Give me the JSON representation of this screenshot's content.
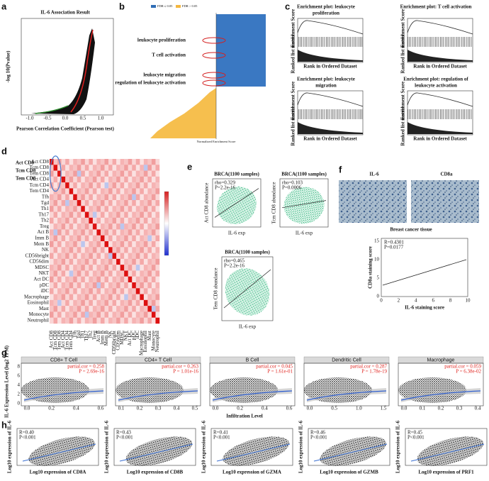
{
  "panel_labels": [
    "a",
    "b",
    "c",
    "d",
    "e",
    "f",
    "g",
    "h"
  ],
  "a": {
    "title": "IL-6 Association Result",
    "ylabel": "-log 10(Pvalue)",
    "xlabel": "Pearson Correlation Coefficient (Pearson test)",
    "xticks": [
      "-1.0",
      "-0.5",
      "0.0",
      "0.5",
      "1.0"
    ]
  },
  "b": {
    "legend": [
      "FDR ≤ 0.05",
      "FDR > 0.05"
    ],
    "highlights": [
      "leukocyte proliferation",
      "T cell activation",
      "leukocyte migration",
      "regulation of leukocyte activation"
    ],
    "xlabel": "Normalized Enrichment Score"
  },
  "c": {
    "ylabel_top": "Enrichment Score",
    "ylabel_bottom": "Ranked list metric",
    "xlabel": "Rank in Ordered Dataset",
    "plots": [
      {
        "title": [
          "Enrichment plot: leukocyte",
          "proliferation"
        ]
      },
      {
        "title": [
          "Enrichment plot: T cell activation"
        ]
      },
      {
        "title": [
          "Enrichment plot: leukocyte",
          "migration"
        ]
      },
      {
        "title": [
          "Enrichment plot: regulation of",
          "leukocyte activation"
        ]
      }
    ]
  },
  "d": {
    "highlights": [
      "Act CD8",
      "Tcm CD8",
      "Tem CD8"
    ],
    "rows": [
      "Act CD8",
      "Tcm CD8",
      "Tem CD8",
      "Act CD4",
      "Tcm CD4",
      "Tem CD4",
      "Tfh",
      "Tgd",
      "Th1",
      "Th17",
      "Th2",
      "Treg",
      "Act B",
      "Imm B",
      "Mem B",
      "NK",
      "CD56bright",
      "CD56dim",
      "MDSC",
      "NKT",
      "Act DC",
      "pDC",
      "iDC",
      "Macrophage",
      "Eosinophil",
      "Mast",
      "Monocyte",
      "Neutrophil"
    ]
  },
  "e": {
    "plots": [
      {
        "title": "BRCA(1100 samples)",
        "stats": [
          "rho=0.329",
          "P=2.2e-16"
        ],
        "ylabel": "Act CD8 abundance",
        "xlabel": "IL-6 exp"
      },
      {
        "title": "BRCA(1100 samples)",
        "stats": [
          "rho=0.103",
          "P=0.0006"
        ],
        "ylabel": "Tcm CD8 abundance",
        "xlabel": "IL-6 exp"
      },
      {
        "title": "BRCA(1100 samples)",
        "stats": [
          "rho=0.465",
          "P=2.2e-16"
        ],
        "ylabel": "Tem CD8 abundance",
        "xlabel": "IL-6 exp"
      }
    ]
  },
  "f": {
    "images": [
      "IL-6",
      "CD8a"
    ],
    "caption": "Breast cancer tissue",
    "stats": [
      "R=0.4301",
      "P=0.0177"
    ],
    "ylabel": "CD8a staining score",
    "xlabel": "IL-6 staining score",
    "xticks": [
      "0",
      "2",
      "4",
      "6",
      "8",
      "10"
    ],
    "yticks": [
      "0",
      "5",
      "10",
      "15"
    ]
  },
  "g": {
    "ylabel": "IL-6 Expression Level (log2 TPM)",
    "xlabel": "Infiltration Level",
    "yticks": [
      "0",
      "2",
      "4",
      "6",
      "8"
    ],
    "plots": [
      {
        "title": "CD8+ T Cell",
        "cor": "partial.cor = 0.258",
        "p": "P = 2.69e-16",
        "xticks": [
          "0.0",
          "0.2",
          "0.4",
          "0.6"
        ]
      },
      {
        "title": "CD4+ T Cell",
        "cor": "partial.cor = 0.263",
        "p": "P = 1.01e-16",
        "xticks": [
          "0.1",
          "0.2",
          "0.3",
          "0.4",
          "0.5"
        ]
      },
      {
        "title": "B Cell",
        "cor": "partial.cor = 0.045",
        "p": "P = 1.61e-01",
        "xticks": [
          "0.0",
          "0.2",
          "0.4",
          "0.6"
        ]
      },
      {
        "title": "Dendritic Cell",
        "cor": "partial.cor = 0.287",
        "p": "P = 1.78e-19",
        "xticks": [
          "0.0",
          "0.5",
          "1.0",
          "1.5"
        ]
      },
      {
        "title": "Macrophage",
        "cor": "partial.cor = 0.059",
        "p": "P = 6.38e-02",
        "xticks": [
          "0.0",
          "0.1",
          "0.2",
          "0.3",
          "0.4"
        ]
      }
    ]
  },
  "h": {
    "ylabel": "Log10 expression of IL-6",
    "plots": [
      {
        "r": "R=0.40",
        "p": "P<0.001",
        "xlabel": "Log10 expression of CD8A"
      },
      {
        "r": "R=0.43",
        "p": "P<0.001",
        "xlabel": "Log10 expression of CD8B"
      },
      {
        "r": "R=0.41",
        "p": "P<0.001",
        "xlabel": "Log10 expression of GZMA"
      },
      {
        "r": "R=0.46",
        "p": "P<0.001",
        "xlabel": "Log10 expression of GZMB"
      },
      {
        "r": "R=0.45",
        "p": "P<0.001",
        "xlabel": "Log10 expression of PRF1"
      }
    ]
  }
}
